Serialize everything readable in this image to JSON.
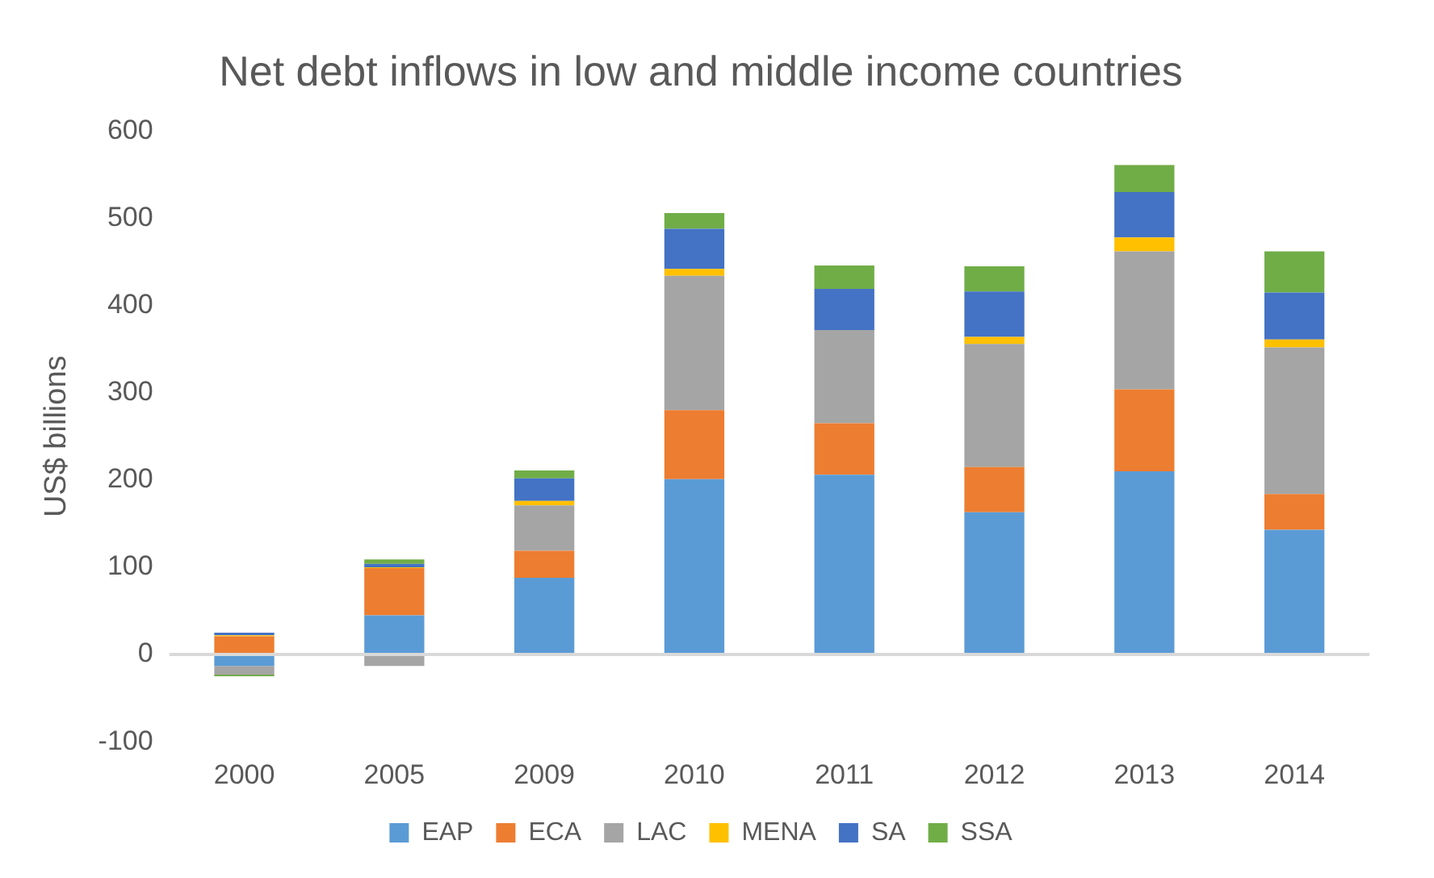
{
  "chart_data": {
    "type": "bar",
    "stacked": true,
    "title": "Net debt inflows in low and middle income countries",
    "ylabel": "US$ billions",
    "categories": [
      "2000",
      "2005",
      "2009",
      "2010",
      "2011",
      "2012",
      "2013",
      "2014"
    ],
    "series": [
      {
        "name": "EAP",
        "color": "#5b9bd5",
        "values": [
          -13,
          45,
          88,
          201,
          206,
          163,
          210,
          143
        ]
      },
      {
        "name": "ECA",
        "color": "#ed7d31",
        "values": [
          21,
          54,
          31,
          79,
          59,
          52,
          94,
          41
        ]
      },
      {
        "name": "LAC",
        "color": "#a5a5a5",
        "values": [
          -10,
          -13,
          52,
          154,
          107,
          141,
          158,
          168
        ]
      },
      {
        "name": "MENA",
        "color": "#ffc000",
        "values": [
          1,
          1,
          5,
          8,
          0,
          8,
          16,
          9
        ]
      },
      {
        "name": "SA",
        "color": "#4472c4",
        "values": [
          3,
          4,
          26,
          46,
          47,
          52,
          52,
          54
        ]
      },
      {
        "name": "SSA",
        "color": "#70ad47",
        "values": [
          -2,
          5,
          9,
          18,
          27,
          29,
          31,
          47
        ]
      }
    ],
    "ylim": [
      -100,
      600
    ],
    "yticks": [
      -100,
      0,
      100,
      200,
      300,
      400,
      500,
      600
    ],
    "grid": false,
    "legend": "bottom",
    "ref_lines": [
      {
        "axis": "y",
        "value": 0,
        "color": "#d9d9d9"
      }
    ]
  }
}
